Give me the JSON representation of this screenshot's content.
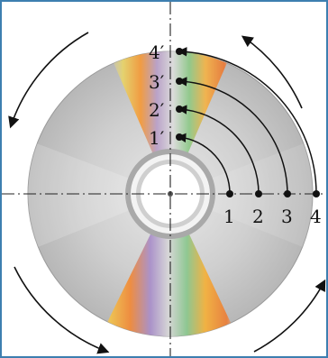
{
  "figure": {
    "points": [
      {
        "id": "p1",
        "label": "1",
        "image_label": "1′"
      },
      {
        "id": "p2",
        "label": "2",
        "image_label": "2′"
      },
      {
        "id": "p3",
        "label": "3",
        "image_label": "3′"
      },
      {
        "id": "p4",
        "label": "4",
        "image_label": "4′"
      }
    ]
  },
  "colors": {
    "frame": "#3d7fb0",
    "disc_base": "#c5c5c5",
    "axis": "#222222",
    "ink": "#111111"
  },
  "icons": {
    "rotation": "curved-arrow-icon"
  }
}
